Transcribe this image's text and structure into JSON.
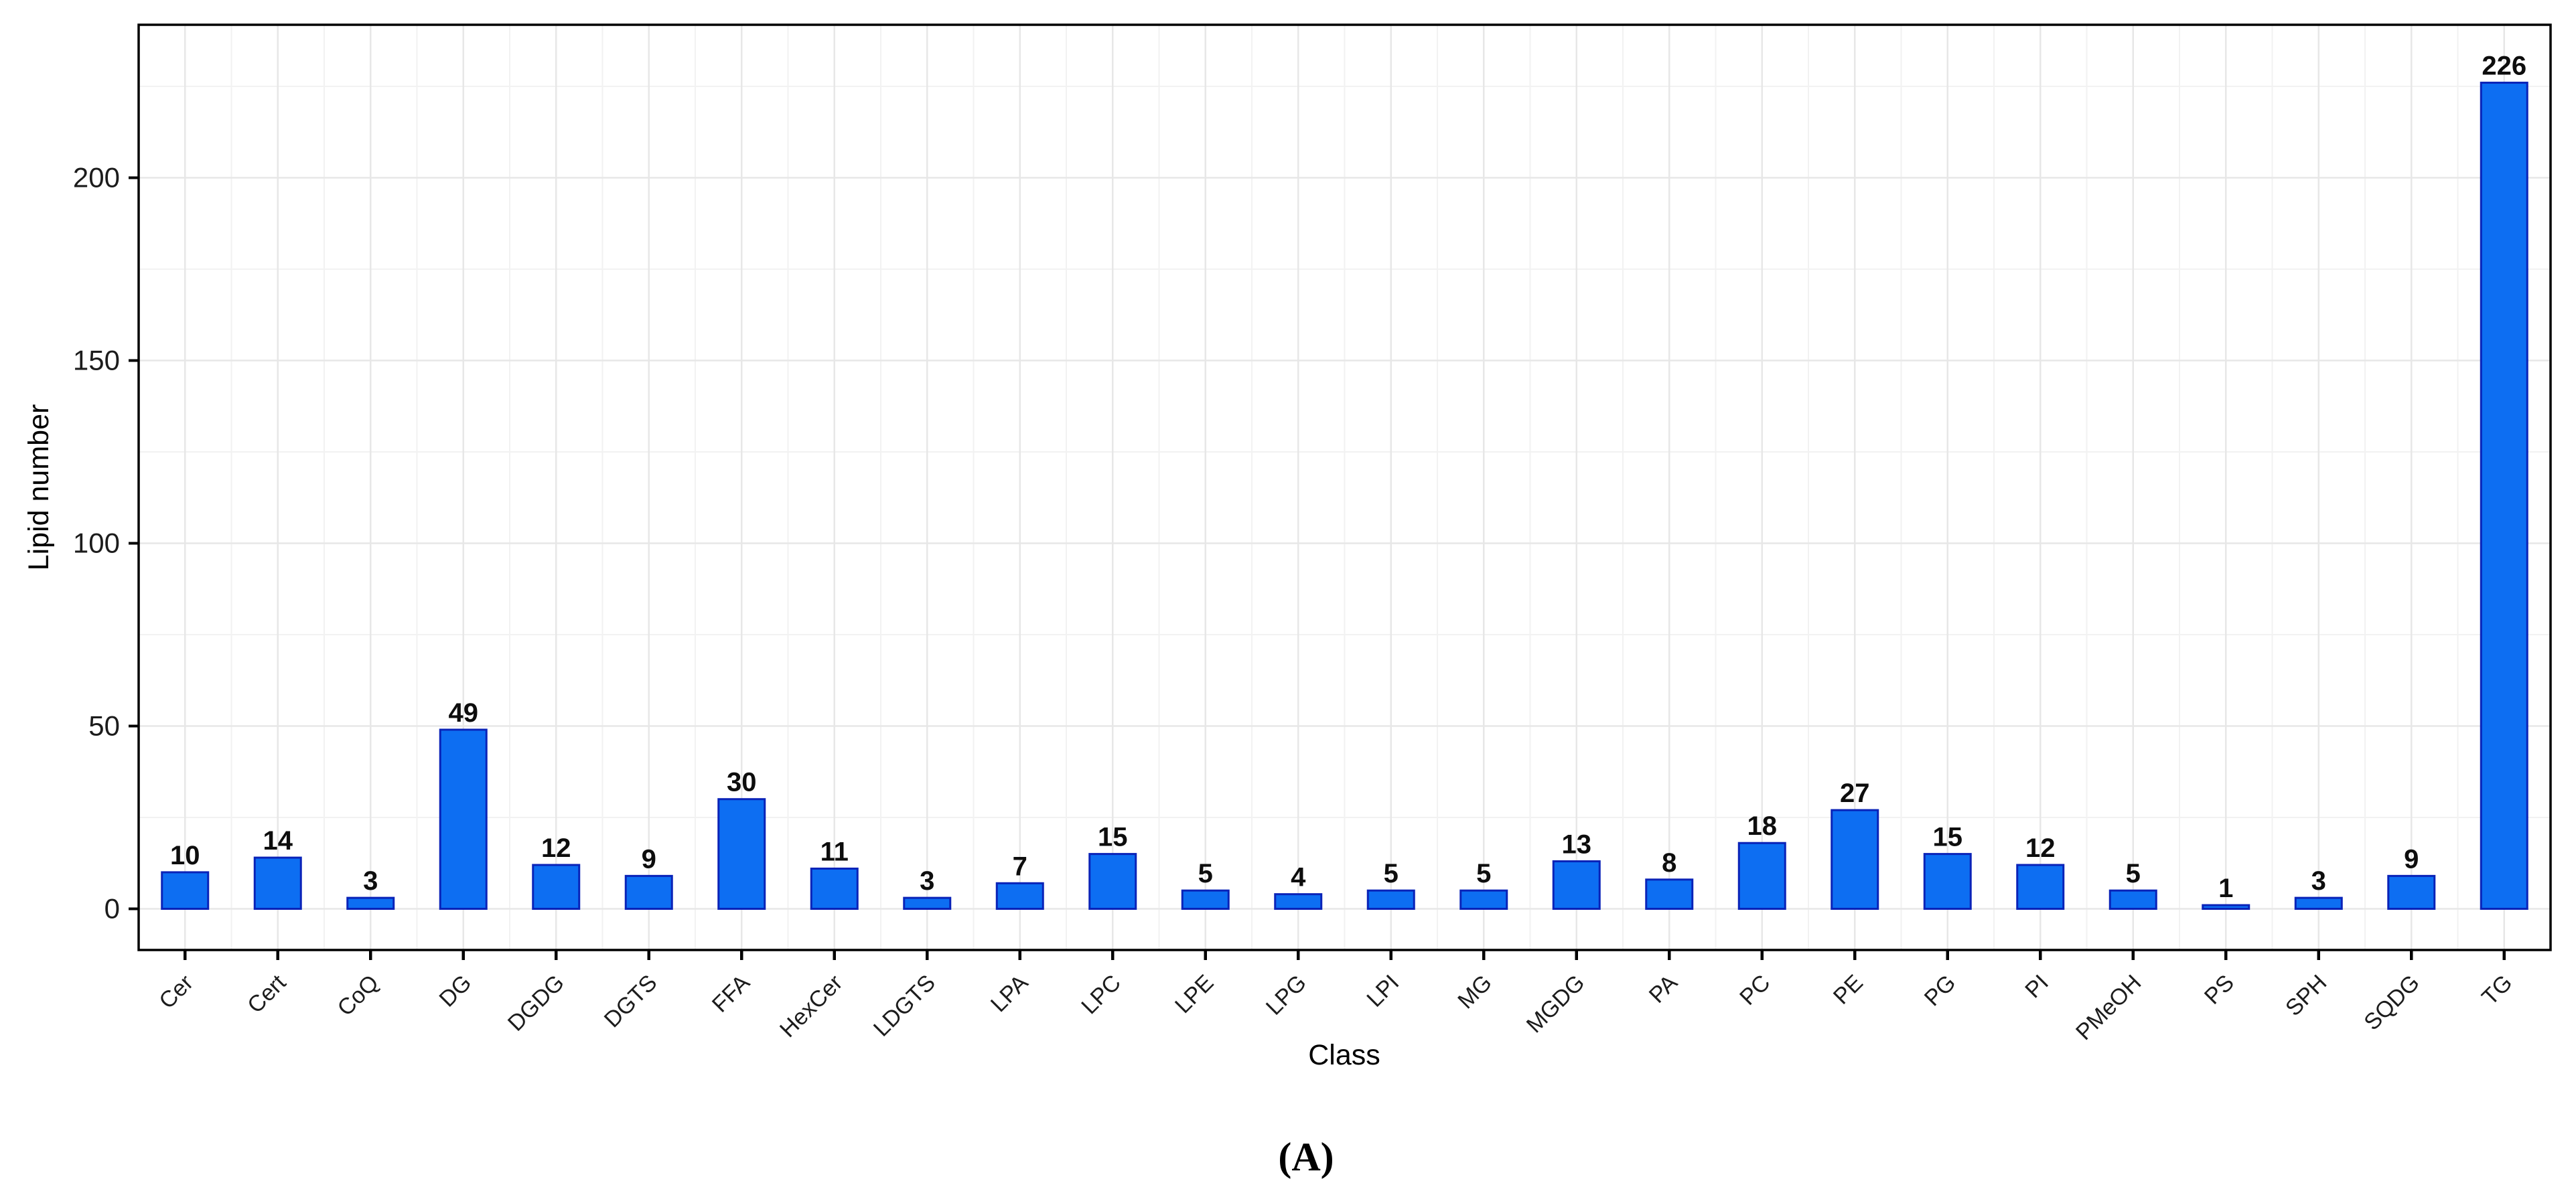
{
  "caption": "(A)",
  "chart_data": {
    "type": "bar",
    "title": "",
    "xlabel": "Class",
    "ylabel": "Lipid number",
    "categories": [
      "Cer",
      "Cert",
      "CoQ",
      "DG",
      "DGDG",
      "DGTS",
      "FFA",
      "HexCer",
      "LDGTS",
      "LPA",
      "LPC",
      "LPE",
      "LPG",
      "LPI",
      "MG",
      "MGDG",
      "PA",
      "PC",
      "PE",
      "PG",
      "PI",
      "PMeOH",
      "PS",
      "SPH",
      "SQDG",
      "TG"
    ],
    "values": [
      10,
      14,
      3,
      49,
      12,
      9,
      30,
      11,
      3,
      7,
      15,
      5,
      4,
      5,
      5,
      13,
      8,
      18,
      27,
      15,
      12,
      5,
      1,
      3,
      9,
      226
    ],
    "yticks": [
      0,
      50,
      100,
      150,
      200
    ],
    "ylim": [
      0,
      241
    ],
    "grid": "major-and-minor-light-gray",
    "legend_position": "none",
    "value_labels_shown": true,
    "colors": {
      "bar_fill": "#0d6ef2",
      "bar_border": "#0a23b8",
      "grid_major": "#e7e7e7",
      "grid_minor": "#f2f2f2",
      "axis": "#000000"
    }
  }
}
